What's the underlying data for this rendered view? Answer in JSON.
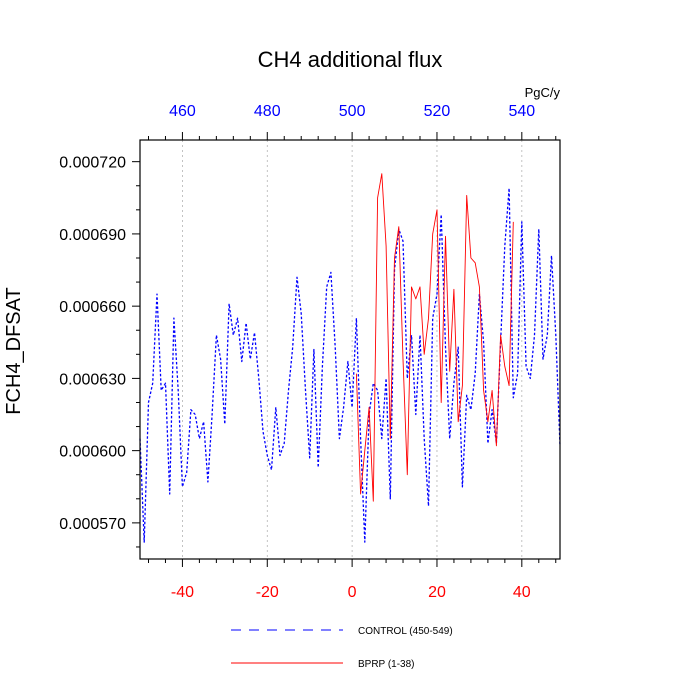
{
  "chart_data": {
    "type": "line",
    "title": "CH4 additional flux",
    "ylabel": "FCH4_DFSAT",
    "top_axis_unit": "PgC/y",
    "xlim": [
      -50,
      49
    ],
    "ylim": [
      0.000555,
      0.000729
    ],
    "grid": "vertical dotted",
    "bottom_ticks": [
      {
        "value": -40,
        "label": "-40"
      },
      {
        "value": -20,
        "label": "-20"
      },
      {
        "value": 0,
        "label": "0"
      },
      {
        "value": 20,
        "label": "20"
      },
      {
        "value": 40,
        "label": "40"
      }
    ],
    "top_ticks": [
      {
        "value": -40,
        "label": "460"
      },
      {
        "value": -20,
        "label": "480"
      },
      {
        "value": 0,
        "label": "500"
      },
      {
        "value": 20,
        "label": "520"
      },
      {
        "value": 40,
        "label": "540"
      }
    ],
    "y_ticks": [
      {
        "value": 0.00057,
        "label": "0.000570"
      },
      {
        "value": 0.0006,
        "label": "0.000600"
      },
      {
        "value": 0.00063,
        "label": "0.000630"
      },
      {
        "value": 0.00066,
        "label": "0.000660"
      },
      {
        "value": 0.00069,
        "label": "0.000690"
      },
      {
        "value": 0.00072,
        "label": "0.000720"
      }
    ],
    "series": [
      {
        "name": "CONTROL (450-549)",
        "color": "#0000ff",
        "style": "dashed",
        "x": [
          -50,
          -49,
          -48,
          -47,
          -46,
          -45,
          -44,
          -43,
          -42,
          -41,
          -40,
          -39,
          -38,
          -37,
          -36,
          -35,
          -34,
          -33,
          -32,
          -31,
          -30,
          -29,
          -28,
          -27,
          -26,
          -25,
          -24,
          -23,
          -22,
          -21,
          -20,
          -19,
          -18,
          -17,
          -16,
          -15,
          -14,
          -13,
          -12,
          -11,
          -10,
          -9,
          -8,
          -7,
          -6,
          -5,
          -4,
          -3,
          -2,
          -1,
          0,
          1,
          2,
          3,
          4,
          5,
          6,
          7,
          8,
          9,
          10,
          11,
          12,
          13,
          14,
          15,
          16,
          17,
          18,
          19,
          20,
          21,
          22,
          23,
          24,
          25,
          26,
          27,
          28,
          29,
          30,
          31,
          32,
          33,
          34,
          35,
          36,
          37,
          38,
          39,
          40,
          41,
          42,
          43,
          44,
          45,
          46,
          47,
          48,
          49
        ],
        "y": [
          0.000605,
          0.000562,
          0.00062,
          0.000628,
          0.000665,
          0.000625,
          0.000628,
          0.000582,
          0.000655,
          0.000625,
          0.000585,
          0.000591,
          0.000617,
          0.000615,
          0.000605,
          0.000612,
          0.000587,
          0.000615,
          0.000648,
          0.000638,
          0.000611,
          0.000661,
          0.000648,
          0.000655,
          0.000637,
          0.000653,
          0.000638,
          0.000649,
          0.00063,
          0.000608,
          0.000598,
          0.000592,
          0.000618,
          0.000598,
          0.000603,
          0.000625,
          0.000643,
          0.000672,
          0.000657,
          0.000625,
          0.000597,
          0.000642,
          0.000593,
          0.000635,
          0.000668,
          0.000674,
          0.000643,
          0.000605,
          0.000618,
          0.000637,
          0.000618,
          0.000655,
          0.000605,
          0.000562,
          0.000615,
          0.000628,
          0.000625,
          0.000605,
          0.00063,
          0.00058,
          0.000675,
          0.000692,
          0.000687,
          0.00063,
          0.000648,
          0.000615,
          0.000648,
          0.000605,
          0.000577,
          0.000655,
          0.000665,
          0.000698,
          0.000643,
          0.000605,
          0.000628,
          0.000643,
          0.000585,
          0.000623,
          0.000617,
          0.000632,
          0.000665,
          0.000645,
          0.000603,
          0.000617,
          0.000603,
          0.000645,
          0.000685,
          0.000709,
          0.000622,
          0.000632,
          0.000695,
          0.000635,
          0.00063,
          0.000648,
          0.000692,
          0.000638,
          0.000648,
          0.000681,
          0.000648,
          0.000602
        ]
      },
      {
        "name": "BPRP (1-38)",
        "color": "#ff0000",
        "style": "solid",
        "x": [
          1,
          2,
          3,
          4,
          5,
          6,
          7,
          8,
          9,
          10,
          11,
          12,
          13,
          14,
          15,
          16,
          17,
          18,
          19,
          20,
          21,
          22,
          23,
          24,
          25,
          26,
          27,
          28,
          29,
          30,
          31,
          32,
          33,
          34,
          35,
          36,
          37,
          38
        ],
        "y": [
          0.000632,
          0.000582,
          0.0006,
          0.000618,
          0.000579,
          0.000705,
          0.000715,
          0.000685,
          0.000605,
          0.00068,
          0.000693,
          0.000638,
          0.00059,
          0.000668,
          0.000663,
          0.000668,
          0.00064,
          0.000655,
          0.00069,
          0.0007,
          0.00062,
          0.000689,
          0.000633,
          0.000667,
          0.000612,
          0.000627,
          0.000706,
          0.00068,
          0.000678,
          0.000668,
          0.000625,
          0.000612,
          0.000625,
          0.000602,
          0.000648,
          0.000635,
          0.000627,
          0.000695
        ]
      }
    ]
  }
}
